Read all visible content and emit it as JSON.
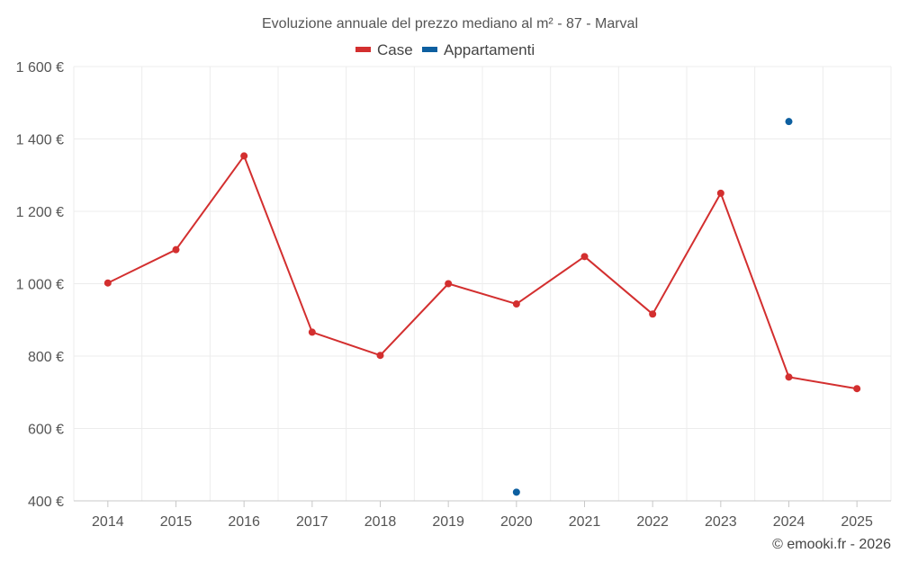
{
  "chart_data": {
    "type": "line",
    "title": "Evoluzione annuale del prezzo mediano al m² - 87 - Marval",
    "x": [
      "2014",
      "2015",
      "2016",
      "2017",
      "2018",
      "2019",
      "2020",
      "2021",
      "2022",
      "2023",
      "2024",
      "2025"
    ],
    "ylim": [
      400,
      1600
    ],
    "yticks": [
      400,
      600,
      800,
      1000,
      1200,
      1400,
      1600
    ],
    "ytick_labels": [
      "400 €",
      "600 €",
      "800 €",
      "1 000 €",
      "1 200 €",
      "1 400 €",
      "1 600 €"
    ],
    "grid": true,
    "legend_position": "top-center",
    "series": [
      {
        "name": "Case",
        "color": "#d32f2f",
        "values": [
          1002,
          1094,
          1353,
          866,
          802,
          1000,
          944,
          1075,
          916,
          1250,
          742,
          710
        ]
      },
      {
        "name": "Appartamenti",
        "color": "#0d5fa0",
        "values": [
          null,
          null,
          null,
          null,
          null,
          null,
          424,
          null,
          null,
          null,
          1448,
          null
        ]
      }
    ],
    "credit": "© emooki.fr - 2026"
  }
}
